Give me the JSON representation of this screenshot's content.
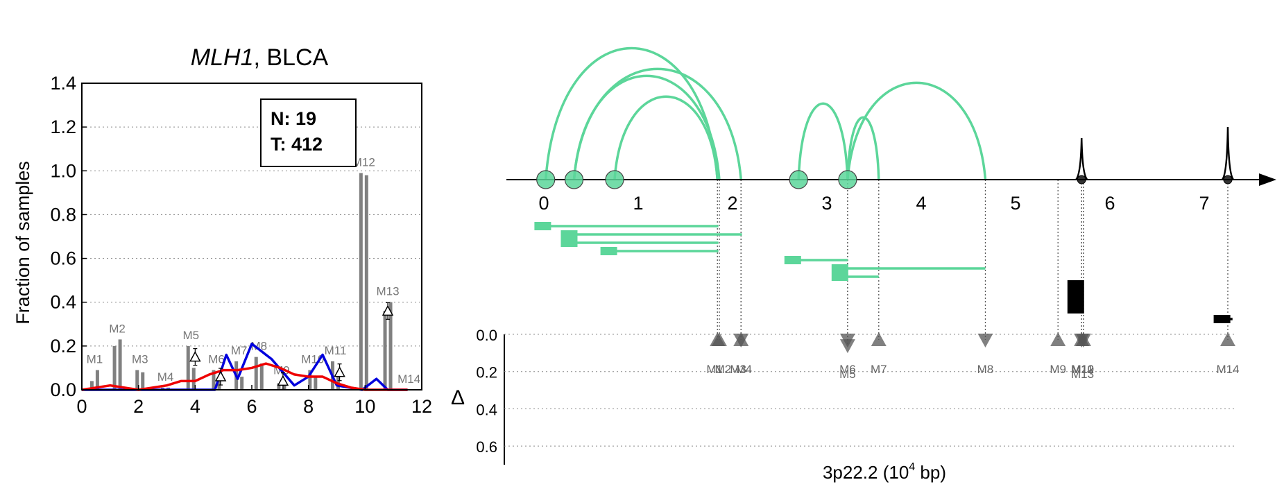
{
  "chart_data": [
    {
      "type": "bar",
      "title": "MLH1, BLCA",
      "title_gene": "MLH1",
      "title_rest": ", BLCA",
      "ylabel": "Fraction of samples",
      "xlim": [
        0,
        12
      ],
      "ylim": [
        0,
        1.4
      ],
      "xticks": [
        "0",
        "2",
        "4",
        "6",
        "8",
        "10",
        "12"
      ],
      "yticks": [
        "0.0",
        "0.2",
        "0.4",
        "0.6",
        "0.8",
        "1.0",
        "1.2",
        "1.4"
      ],
      "grid": "horizontal dotted",
      "legend_box": {
        "line1": "N: 19",
        "line2": "T: 412",
        "placement": "top-center"
      },
      "bars": [
        {
          "label": "M1",
          "x": 0.5,
          "normal": 0.04,
          "tumor": 0.09
        },
        {
          "label": "M2",
          "x": 1.3,
          "normal": 0.2,
          "tumor": 0.23
        },
        {
          "label": "M3",
          "x": 2.1,
          "normal": 0.09,
          "tumor": 0.08
        },
        {
          "label": "M4",
          "x": 3.0,
          "normal": 0.01,
          "tumor": 0.01
        },
        {
          "label": "M5",
          "x": 3.9,
          "normal": 0.2,
          "tumor": 0.1
        },
        {
          "label": "M6",
          "x": 4.8,
          "normal": 0.09,
          "tumor": 0.05
        },
        {
          "label": "M7",
          "x": 5.6,
          "normal": 0.13,
          "tumor": 0.06
        },
        {
          "label": "M8",
          "x": 6.3,
          "normal": 0.15,
          "tumor": 0.12
        },
        {
          "label": "M9",
          "x": 7.1,
          "normal": 0.03,
          "tumor": 0.04
        },
        {
          "label": "M10",
          "x": 8.2,
          "normal": 0.09,
          "tumor": 0.06
        },
        {
          "label": "M11",
          "x": 9.0,
          "normal": 0.13,
          "tumor": 0.07
        },
        {
          "label": "M12",
          "x": 10.0,
          "normal": 0.99,
          "tumor": 0.98
        },
        {
          "label": "M13",
          "x": 10.85,
          "normal": 0.36,
          "tumor": 0.4
        },
        {
          "label": "M14",
          "x": 11.6,
          "normal": 0.0,
          "tumor": 0.0
        }
      ],
      "deltas": [
        {
          "x": 4.0,
          "y": 0.15
        },
        {
          "x": 4.9,
          "y": 0.06
        },
        {
          "x": 7.1,
          "y": 0.04
        },
        {
          "x": 9.1,
          "y": 0.08
        },
        {
          "x": 10.8,
          "y": 0.36
        }
      ],
      "series": [
        {
          "color": "#0000dd",
          "x": [
            0,
            4.7,
            5.1,
            5.5,
            6.0,
            6.7,
            7.5,
            8.0,
            8.5,
            9.0,
            9.9,
            10.4,
            10.8,
            11.5
          ],
          "y": [
            0,
            0,
            0.16,
            0.05,
            0.21,
            0.14,
            0.02,
            0.06,
            0.16,
            0.02,
            0,
            0.05,
            0,
            0
          ]
        },
        {
          "color": "#ee0000",
          "x": [
            0,
            0.5,
            1.0,
            1.5,
            2.0,
            2.5,
            3.0,
            3.5,
            4.0,
            4.5,
            5.0,
            5.5,
            6.0,
            6.5,
            7.0,
            7.5,
            8.0,
            8.5,
            9.0,
            9.5,
            10.0,
            10.5,
            11.0,
            11.5
          ],
          "y": [
            0,
            0.01,
            0.02,
            0.01,
            0.0,
            0.01,
            0.02,
            0.04,
            0.04,
            0.07,
            0.09,
            0.09,
            0.1,
            0.12,
            0.1,
            0.07,
            0.06,
            0.06,
            0.03,
            0.01,
            0.0,
            0.0,
            0.0,
            0.0
          ]
        }
      ]
    },
    {
      "type": "diagram",
      "xlabel_prefix": "3p22.2 (10",
      "xlabel_exp": "4",
      "xlabel_suffix": " bp)",
      "xlim": [
        -0.4,
        7.65
      ],
      "xticks": [
        "0",
        "1",
        "2",
        "3",
        "4",
        "5",
        "6",
        "7"
      ],
      "delta_label": "Δ",
      "delta_ylim": [
        0,
        0.7
      ],
      "delta_yticks": [
        "0.0",
        "0.2",
        "0.4",
        "0.6"
      ],
      "arc_color": "#5cd69a",
      "arcs": [
        {
          "start": 0.02,
          "end": 1.84,
          "height": 0.95
        },
        {
          "start": 0.32,
          "end": 2.09,
          "height": 0.8
        },
        {
          "start": 0.32,
          "end": 1.86,
          "height": 0.75
        },
        {
          "start": 0.75,
          "end": 1.84,
          "height": 0.6
        },
        {
          "start": 2.7,
          "end": 3.22,
          "height": 0.55
        },
        {
          "start": 3.22,
          "end": 3.55,
          "height": 0.45
        },
        {
          "start": 3.22,
          "end": 4.68,
          "height": 0.7
        }
      ],
      "nodes": [
        0.02,
        0.32,
        0.75,
        2.7,
        3.22
      ],
      "peaks": [
        {
          "x": 5.7,
          "height": 0.3
        },
        {
          "x": 7.25,
          "height": 0.38
        }
      ],
      "isoform_lines": [
        {
          "start": -0.1,
          "end": 1.85,
          "row": 0,
          "color": "#5cd69a"
        },
        {
          "start": 0.18,
          "end": 2.1,
          "row": 1,
          "color": "#5cd69a"
        },
        {
          "start": 0.18,
          "end": 1.85,
          "row": 2,
          "color": "#5cd69a"
        },
        {
          "start": 0.6,
          "end": 1.85,
          "row": 3,
          "color": "#5cd69a"
        },
        {
          "start": 2.55,
          "end": 3.22,
          "row": 4,
          "color": "#5cd69a"
        },
        {
          "start": 3.05,
          "end": 4.68,
          "row": 5,
          "color": "#5cd69a"
        },
        {
          "start": 3.05,
          "end": 3.55,
          "row": 6,
          "color": "#5cd69a"
        },
        {
          "start": 5.55,
          "end": 5.72,
          "row": 7,
          "color": "#000000"
        },
        {
          "start": 5.55,
          "end": 5.72,
          "row": 8,
          "color": "#000000"
        },
        {
          "start": 5.55,
          "end": 5.72,
          "row": 9,
          "color": "#000000"
        },
        {
          "start": 5.55,
          "end": 5.72,
          "row": 10,
          "color": "#000000"
        },
        {
          "start": 7.1,
          "end": 7.3,
          "row": 11,
          "color": "#000000"
        }
      ],
      "markers": [
        {
          "label": "M1",
          "x": 1.84,
          "dir": "up",
          "delta": 0.03
        },
        {
          "label": "M2",
          "x": 1.86,
          "dir": "up",
          "delta": 0.03
        },
        {
          "label": "M3",
          "x": 2.09,
          "dir": "down",
          "delta": 0.03
        },
        {
          "label": "M4",
          "x": 2.09,
          "dir": "up",
          "delta": 0.03
        },
        {
          "label": "M5",
          "x": 3.22,
          "dir": "down",
          "delta": 0.06
        },
        {
          "label": "M6",
          "x": 3.22,
          "dir": "down",
          "delta": 0.03
        },
        {
          "label": "M7",
          "x": 3.55,
          "dir": "up",
          "delta": 0.03
        },
        {
          "label": "M8",
          "x": 4.68,
          "dir": "down",
          "delta": 0.03
        },
        {
          "label": "M9",
          "x": 5.45,
          "dir": "up",
          "delta": 0.03
        },
        {
          "label": "M10",
          "x": 5.7,
          "dir": "up",
          "delta": 0.03
        },
        {
          "label": "M11",
          "x": 5.7,
          "dir": "down",
          "delta": 0.03
        },
        {
          "label": "M12",
          "x": 5.72,
          "dir": "up",
          "delta": 0.03
        },
        {
          "label": "M13",
          "x": 5.72,
          "dir": "down",
          "delta": 0.03
        },
        {
          "label": "M14",
          "x": 7.25,
          "dir": "up",
          "delta": 0.03
        }
      ],
      "marker_label_rows": [
        {
          "text": "M1",
          "x": 1.81
        },
        {
          "text": "M2",
          "x": 1.9
        },
        {
          "text": "M3",
          "x": 2.06
        },
        {
          "text": "M4",
          "x": 2.12
        },
        {
          "text": "M6",
          "x": 3.22
        },
        {
          "text": "M7",
          "x": 3.55
        },
        {
          "text": "M8",
          "x": 4.68
        },
        {
          "text": "M9",
          "x": 5.45
        },
        {
          "text": "M10",
          "x": 5.71
        },
        {
          "text": "M11",
          "x": 5.71
        },
        {
          "text": "M12",
          "x": 5.71
        },
        {
          "text": "M14",
          "x": 7.25
        }
      ],
      "marker_label_rows2": [
        {
          "text": "M5",
          "x": 3.22
        },
        {
          "text": "M13",
          "x": 5.71
        }
      ]
    }
  ]
}
